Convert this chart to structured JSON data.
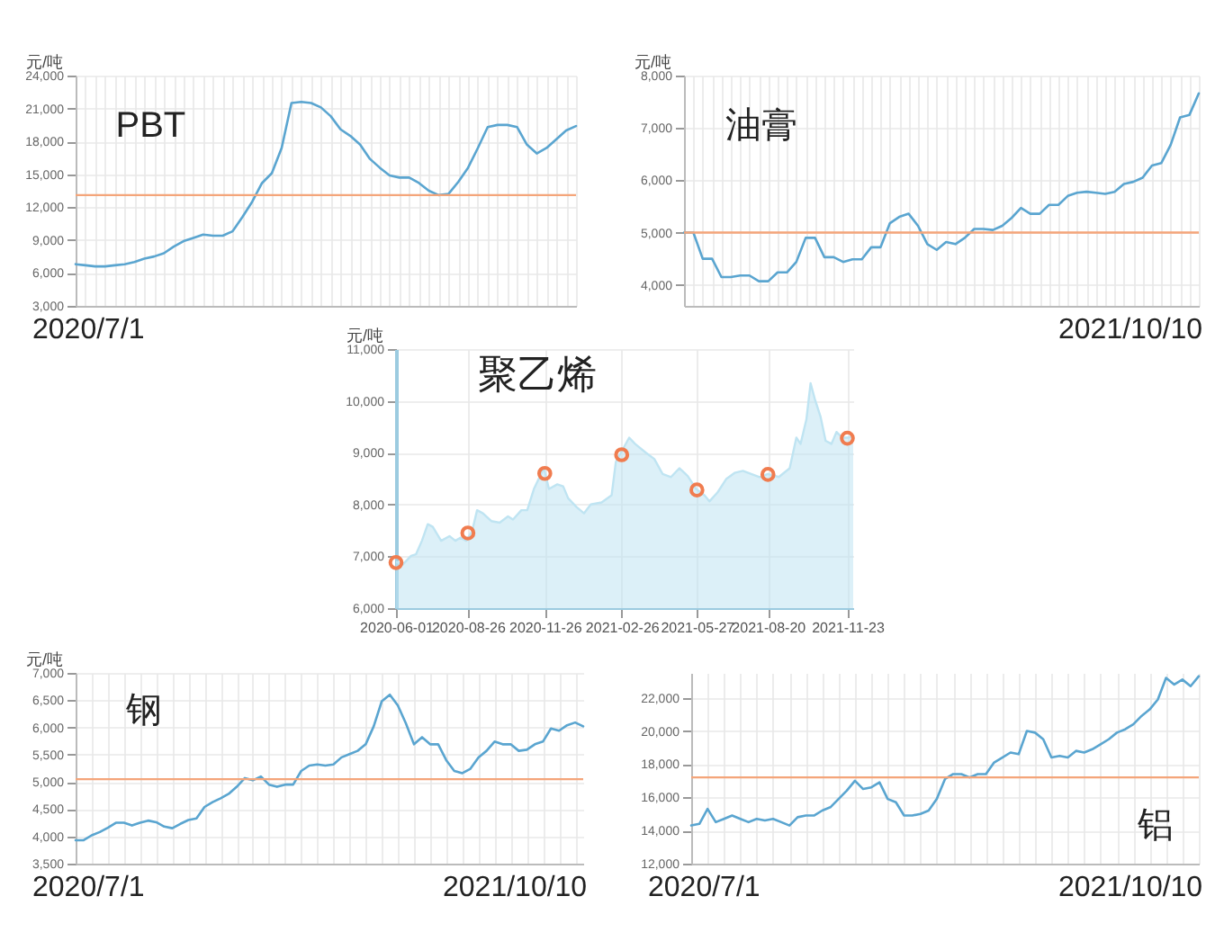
{
  "chart_data": [
    {
      "type": "line",
      "title": "PBT",
      "ylabel": "元/吨",
      "categories": [
        null,
        null,
        null,
        null,
        null,
        null,
        null,
        null,
        null,
        null,
        null,
        null,
        null,
        null,
        null,
        null,
        null,
        null,
        null,
        null,
        null,
        null,
        null,
        null,
        null,
        null,
        null,
        null,
        null,
        null,
        null,
        null,
        null,
        null,
        null,
        null,
        null,
        null,
        null,
        null,
        null,
        null,
        null,
        null,
        null,
        null,
        null,
        null,
        null,
        null,
        null,
        null
      ],
      "series": [
        {
          "color": "#5aa5d0",
          "values": [
            6800,
            6700,
            6600,
            6600,
            6700,
            6800,
            7000,
            7300,
            7500,
            7800,
            8400,
            8900,
            9200,
            9500,
            9400,
            9400,
            9800,
            11100,
            12500,
            14200,
            15100,
            17400,
            21500,
            21600,
            21500,
            21100,
            20300,
            19100,
            18500,
            17700,
            16400,
            15600,
            14900,
            14700,
            14700,
            14200,
            13500,
            13100,
            13200,
            14300,
            15600,
            17400,
            19300,
            19500,
            19500,
            19300,
            17700,
            16900,
            17400,
            18200,
            19000,
            19400
          ]
        }
      ],
      "ylim": [
        3000,
        24000
      ],
      "yticks": [
        {
          "value": 3000,
          "label": "3,000"
        },
        {
          "value": 6000,
          "label": "6,000"
        },
        {
          "value": 9000,
          "label": "9,000"
        },
        {
          "value": 12000,
          "label": "12,000"
        },
        {
          "value": 15000,
          "label": "15,000"
        },
        {
          "value": 18000,
          "label": "18,000"
        },
        {
          "value": 21000,
          "label": "21,000"
        },
        {
          "value": 24000,
          "label": "24,000"
        }
      ],
      "grid": true,
      "tick_labels": "y",
      "ref_lines": [
        {
          "axis": "y",
          "value": 13100,
          "color": "#f4a57a"
        }
      ],
      "annotations": [
        "2020/7/1"
      ]
    },
    {
      "type": "line",
      "title": "油膏",
      "ylabel": "元/吨",
      "categories": [
        null,
        null,
        null,
        null,
        null,
        null,
        null,
        null,
        null,
        null,
        null,
        null,
        null,
        null,
        null,
        null,
        null,
        null,
        null,
        null,
        null,
        null,
        null,
        null,
        null,
        null,
        null,
        null,
        null,
        null,
        null,
        null,
        null,
        null,
        null,
        null,
        null,
        null,
        null,
        null,
        null,
        null,
        null,
        null,
        null,
        null,
        null,
        null,
        null,
        null,
        null,
        null,
        null,
        null,
        null,
        null
      ],
      "series": [
        {
          "color": "#5aa5d0",
          "values": [
            5000,
            5000,
            4500,
            4500,
            4150,
            4150,
            4180,
            4180,
            4070,
            4070,
            4240,
            4240,
            4440,
            4900,
            4900,
            4530,
            4530,
            4440,
            4490,
            4490,
            4720,
            4720,
            5180,
            5300,
            5360,
            5130,
            4780,
            4670,
            4820,
            4780,
            4900,
            5070,
            5070,
            5050,
            5130,
            5280,
            5470,
            5360,
            5360,
            5530,
            5530,
            5700,
            5760,
            5780,
            5760,
            5740,
            5780,
            5930,
            5970,
            6050,
            6280,
            6330,
            6680,
            7200,
            7250,
            7660
          ]
        }
      ],
      "ylim": [
        3600,
        8000
      ],
      "yticks": [
        {
          "value": 4000,
          "label": "4,000"
        },
        {
          "value": 5000,
          "label": "5,000"
        },
        {
          "value": 6000,
          "label": "6,000"
        },
        {
          "value": 7000,
          "label": "7,000"
        },
        {
          "value": 8000,
          "label": "8,000"
        }
      ],
      "grid": true,
      "tick_labels": "y",
      "ref_lines": [
        {
          "axis": "y",
          "value": 5000,
          "color": "#f4a57a"
        }
      ],
      "annotations": [
        "2021/10/10"
      ]
    },
    {
      "type": "area",
      "title": "聚乙烯",
      "ylabel": "元/吨",
      "series": [
        {
          "color": "#bfe4f2",
          "x": [
            "2020-06-01",
            "2020-06-09",
            "2020-06-19",
            "2020-06-25",
            "2020-07-02",
            "2020-07-09",
            "2020-07-15",
            "2020-07-25",
            "2020-08-04",
            "2020-08-11",
            "2020-08-17",
            "2020-08-24",
            "2020-08-31",
            "2020-09-06",
            "2020-09-13",
            "2020-09-23",
            "2020-10-03",
            "2020-10-13",
            "2020-10-19",
            "2020-10-29",
            "2020-11-05",
            "2020-11-13",
            "2020-11-18",
            "2020-11-25",
            "2020-12-01",
            "2020-12-11",
            "2020-12-18",
            "2020-12-24",
            "2021-01-03",
            "2021-01-12",
            "2021-01-20",
            "2021-02-02",
            "2021-02-14",
            "2021-02-19",
            "2021-02-25",
            "2021-03-07",
            "2021-03-14",
            "2021-03-27",
            "2021-04-06",
            "2021-04-16",
            "2021-04-26",
            "2021-05-06",
            "2021-05-16",
            "2021-05-26",
            "2021-06-05",
            "2021-06-11",
            "2021-06-21",
            "2021-07-01",
            "2021-07-11",
            "2021-07-21",
            "2021-07-31",
            "2021-08-10",
            "2021-08-20",
            "2021-09-02",
            "2021-09-15",
            "2021-09-23",
            "2021-09-28",
            "2021-10-05",
            "2021-10-10",
            "2021-10-15",
            "2021-10-22",
            "2021-10-28",
            "2021-11-04",
            "2021-11-10",
            "2021-11-17",
            "2021-11-24",
            "2021-11-30"
          ],
          "values": [
            6900,
            6840,
            7010,
            7040,
            7300,
            7620,
            7570,
            7300,
            7390,
            7300,
            7360,
            7300,
            7480,
            7890,
            7830,
            7680,
            7650,
            7770,
            7710,
            7890,
            7890,
            8300,
            8470,
            8700,
            8300,
            8390,
            8350,
            8120,
            7950,
            7830,
            8000,
            8040,
            8180,
            8820,
            9000,
            9290,
            9170,
            9000,
            8880,
            8590,
            8530,
            8700,
            8550,
            8300,
            8180,
            8060,
            8240,
            8490,
            8610,
            8650,
            8590,
            8530,
            8590,
            8530,
            8700,
            9290,
            9170,
            9640,
            10340,
            10040,
            9690,
            9230,
            9170,
            9400,
            9290,
            9290,
            9320
          ]
        },
        {
          "type": "scatter",
          "marker": "circle",
          "color": "#f07c4f",
          "x": [
            "2020-06-01",
            "2020-08-26",
            "2020-11-26",
            "2021-02-26",
            "2021-05-27",
            "2021-08-20",
            "2021-11-23"
          ],
          "values": [
            6880,
            7450,
            8600,
            8960,
            8280,
            8580,
            9280
          ]
        }
      ],
      "xlim": [
        "2020-06-01",
        "2021-11-30"
      ],
      "xticks": [
        "2020-06-01",
        "2020-08-26",
        "2020-11-26",
        "2021-02-26",
        "2021-05-27",
        "2021-08-20",
        "2021-11-23"
      ],
      "ylim": [
        6000,
        11000
      ],
      "yticks": [
        {
          "value": 6000,
          "label": "6,000"
        },
        {
          "value": 7000,
          "label": "7,000"
        },
        {
          "value": 8000,
          "label": "8,000"
        },
        {
          "value": 9000,
          "label": "9,000"
        },
        {
          "value": 10000,
          "label": "10,000"
        },
        {
          "value": 11000,
          "label": "11,000"
        }
      ],
      "grid": true
    },
    {
      "type": "line",
      "title": "钢",
      "ylabel": "元/吨",
      "categories": [
        null,
        null,
        null,
        null,
        null,
        null,
        null,
        null,
        null,
        null,
        null,
        null,
        null,
        null,
        null,
        null,
        null,
        null,
        null,
        null,
        null,
        null,
        null,
        null,
        null,
        null,
        null,
        null,
        null,
        null,
        null,
        null,
        null,
        null,
        null,
        null,
        null,
        null,
        null,
        null,
        null,
        null,
        null,
        null,
        null,
        null,
        null,
        null,
        null,
        null,
        null,
        null,
        null,
        null,
        null,
        null,
        null,
        null,
        null,
        null,
        null,
        null,
        null,
        null
      ],
      "series": [
        {
          "color": "#5aa5d0",
          "values": [
            3930,
            3930,
            4020,
            4080,
            4160,
            4250,
            4250,
            4200,
            4250,
            4290,
            4260,
            4180,
            4150,
            4230,
            4300,
            4330,
            4540,
            4630,
            4700,
            4780,
            4910,
            5070,
            5030,
            5100,
            4950,
            4910,
            4950,
            4950,
            5200,
            5300,
            5320,
            5300,
            5320,
            5450,
            5510,
            5570,
            5690,
            6020,
            6480,
            6600,
            6400,
            6070,
            5690,
            5820,
            5690,
            5690,
            5400,
            5200,
            5160,
            5240,
            5450,
            5570,
            5740,
            5690,
            5690,
            5570,
            5590,
            5690,
            5740,
            5980,
            5940,
            6040,
            6090,
            6020
          ]
        }
      ],
      "ylim": [
        3500,
        7000
      ],
      "yticks": [
        {
          "value": 3500,
          "label": "3,500"
        },
        {
          "value": 4000,
          "label": "4,000"
        },
        {
          "value": 4500,
          "label": "4,500"
        },
        {
          "value": 5000,
          "label": "5,000"
        },
        {
          "value": 5500,
          "label": "5,500"
        },
        {
          "value": 6000,
          "label": "6,000"
        },
        {
          "value": 6500,
          "label": "6,500"
        },
        {
          "value": 7000,
          "label": "7,000"
        }
      ],
      "grid": true,
      "tick_labels": "y",
      "ref_lines": [
        {
          "axis": "y",
          "value": 5050,
          "color": "#f4a57a"
        }
      ],
      "annotations": [
        "2020/7/1",
        "2021/10/10"
      ]
    },
    {
      "type": "line",
      "title": "铝",
      "categories": [
        null,
        null,
        null,
        null,
        null,
        null,
        null,
        null,
        null,
        null,
        null,
        null,
        null,
        null,
        null,
        null,
        null,
        null,
        null,
        null,
        null,
        null,
        null,
        null,
        null,
        null,
        null,
        null,
        null,
        null,
        null,
        null,
        null,
        null,
        null,
        null,
        null,
        null,
        null,
        null,
        null,
        null,
        null,
        null,
        null,
        null,
        null,
        null,
        null,
        null,
        null,
        null,
        null,
        null,
        null,
        null,
        null,
        null,
        null,
        null,
        null,
        null,
        null
      ],
      "series": [
        {
          "color": "#5aa5d0",
          "values": [
            14300,
            14400,
            15300,
            14500,
            14700,
            14900,
            14700,
            14500,
            14700,
            14600,
            14700,
            14500,
            14300,
            14800,
            14900,
            14900,
            15200,
            15400,
            15900,
            16400,
            17000,
            16500,
            16600,
            16900,
            15900,
            15700,
            14900,
            14900,
            15000,
            15200,
            15900,
            17100,
            17400,
            17400,
            17200,
            17400,
            17400,
            18100,
            18400,
            18700,
            18600,
            20000,
            19900,
            19500,
            18400,
            18500,
            18400,
            18800,
            18700,
            18900,
            19200,
            19500,
            19900,
            20100,
            20400,
            20900,
            21300,
            21900,
            23200,
            22800,
            23100,
            22700,
            23300
          ]
        }
      ],
      "ylim": [
        12000,
        23500
      ],
      "yticks": [
        {
          "value": 12000,
          "label": "12,000"
        },
        {
          "value": 14000,
          "label": "14,000"
        },
        {
          "value": 16000,
          "label": "16,000"
        },
        {
          "value": 18000,
          "label": "18,000"
        },
        {
          "value": 20000,
          "label": "20,000"
        },
        {
          "value": 22000,
          "label": "22,000"
        }
      ],
      "grid": true,
      "tick_labels": "y",
      "ref_lines": [
        {
          "axis": "y",
          "value": 17200,
          "color": "#f4a57a"
        }
      ],
      "annotations": [
        "2020/7/1",
        "2021/10/10"
      ]
    }
  ]
}
